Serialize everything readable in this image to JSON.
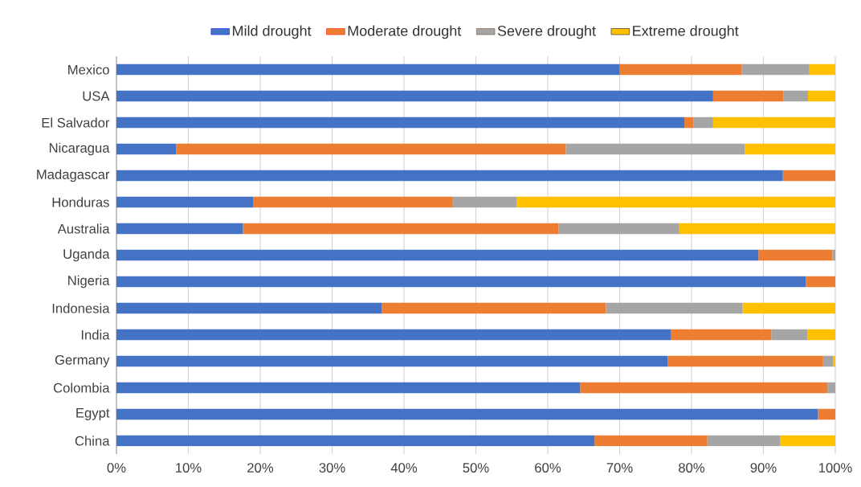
{
  "chart_data": {
    "type": "bar",
    "orientation": "horizontal",
    "stacked": true,
    "grid": "x",
    "legend": "top",
    "categories": [
      "Mexico",
      "USA",
      "El Salvador",
      "Nicaragua",
      "Madagascar",
      "Honduras",
      "Australia",
      "Uganda",
      "Nigeria",
      "Indonesia",
      "India",
      "Germany",
      "Colombia",
      "Egypt",
      "China"
    ],
    "series": [
      {
        "name": "Mild drought",
        "color": "#4472c4",
        "values": [
          70,
          83,
          79,
          8.3,
          92.7,
          19,
          17.6,
          89.3,
          95.9,
          36.9,
          77.1,
          76.7,
          64.5,
          97.6,
          66.5
        ]
      },
      {
        "name": "Moderate drought",
        "color": "#ed7d31",
        "values": [
          17,
          9.8,
          1.3,
          54.2,
          7.3,
          27.8,
          43.9,
          10.3,
          4.1,
          31.2,
          14,
          21.6,
          34.4,
          2.4,
          15.7
        ]
      },
      {
        "name": "Severe drought",
        "color": "#a5a5a5",
        "values": [
          9.4,
          3.4,
          2.7,
          24.9,
          0,
          8.9,
          16.8,
          0.4,
          0,
          19,
          5,
          1.4,
          1.1,
          0,
          10.1
        ]
      },
      {
        "name": "Extreme drought",
        "color": "#ffc000",
        "values": [
          3.6,
          3.8,
          17,
          12.6,
          0,
          44.3,
          21.7,
          0,
          0,
          12.9,
          3.9,
          0.3,
          0,
          0,
          7.7
        ]
      }
    ],
    "xlim": [
      0,
      100
    ],
    "xticks": [
      {
        "value": 0,
        "label": "0%"
      },
      {
        "value": 10,
        "label": "10%"
      },
      {
        "value": 20,
        "label": "20%"
      },
      {
        "value": 30,
        "label": "30%"
      },
      {
        "value": 40,
        "label": "40%"
      },
      {
        "value": 50,
        "label": "50%"
      },
      {
        "value": 60,
        "label": "60%"
      },
      {
        "value": 70,
        "label": "70%"
      },
      {
        "value": 80,
        "label": "80%"
      },
      {
        "value": 90,
        "label": "90%"
      },
      {
        "value": 100,
        "label": "100%"
      }
    ]
  }
}
